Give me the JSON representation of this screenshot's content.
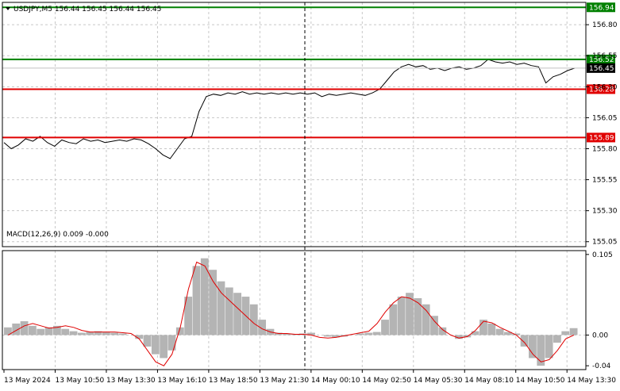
{
  "header": {
    "title": "USDJPY,M5  156.44 156.45 156.44 156.45"
  },
  "macd": {
    "label": "MACD(12,26,9) 0.009 -0.000"
  },
  "colors": {
    "background": "#ffffff",
    "grid": "#c8c8c8",
    "price_line": "#000000",
    "resistance": "#008000",
    "support": "#e00000",
    "histogram": "#b4b4b4",
    "signal": "#e00000",
    "current_price_label_bg": "#000000"
  },
  "chart_data": [
    {
      "type": "line",
      "title": "USDJPY,M5  156.44 156.45 156.44 156.45",
      "y_ticks": [
        "156.80",
        "156.55",
        "156.30",
        "156.05",
        "155.80",
        "155.55",
        "155.30",
        "155.05"
      ],
      "x_ticks": [
        "13 May 2024",
        "13 May 10:50",
        "13 May 13:30",
        "13 May 16:10",
        "13 May 18:50",
        "13 May 21:30",
        "14 May 00:10",
        "14 May 02:50",
        "14 May 05:30",
        "14 May 08:10",
        "14 May 10:50",
        "14 May 13:30"
      ],
      "ylim": [
        155.01,
        156.98
      ],
      "grid": true,
      "levels": [
        {
          "value": 156.94,
          "label": "156.94",
          "color": "#008000"
        },
        {
          "value": 156.52,
          "label": "156.52",
          "color": "#008000"
        },
        {
          "value": 156.28,
          "label": "156.28",
          "color": "#e00000"
        },
        {
          "value": 155.89,
          "label": "155.89",
          "color": "#e00000"
        }
      ],
      "current_price": {
        "value": 156.45,
        "label": "156.45"
      },
      "vertical_marker_x_index": 5.6,
      "series": [
        {
          "values": [
            155.85,
            155.8,
            155.83,
            155.88,
            155.86,
            155.9,
            155.85,
            155.82,
            155.87,
            155.85,
            155.84,
            155.88,
            155.86,
            155.87,
            155.85,
            155.86,
            155.87,
            155.86,
            155.88,
            155.87,
            155.84,
            155.8,
            155.75,
            155.72,
            155.8,
            155.88,
            155.9,
            156.1,
            156.22,
            156.24,
            156.23,
            156.25,
            156.24,
            156.26,
            156.24,
            156.25,
            156.24,
            156.25,
            156.24,
            156.25,
            156.24,
            156.25,
            156.24,
            156.25,
            156.22,
            156.24,
            156.23,
            156.24,
            156.25,
            156.24,
            156.23,
            156.25,
            156.28,
            156.35,
            156.42,
            156.46,
            156.48,
            156.46,
            156.47,
            156.44,
            156.45,
            156.43,
            156.45,
            156.46,
            156.44,
            156.45,
            156.47,
            156.52,
            156.5,
            156.49,
            156.5,
            156.48,
            156.49,
            156.47,
            156.46,
            156.33,
            156.38,
            156.4,
            156.43,
            156.45
          ]
        }
      ]
    },
    {
      "type": "bar",
      "title": "MACD(12,26,9) 0.009 -0.000",
      "y_ticks": [
        "0.105",
        "0.00",
        "-0.04"
      ],
      "ylim": [
        -0.045,
        0.11
      ],
      "histogram": [
        0.01,
        0.015,
        0.018,
        0.012,
        0.008,
        0.01,
        0.012,
        0.008,
        0.005,
        0.003,
        0.004,
        0.005,
        0.004,
        0.003,
        0.002,
        0.0,
        -0.005,
        -0.015,
        -0.025,
        -0.03,
        -0.02,
        0.01,
        0.05,
        0.09,
        0.1,
        0.085,
        0.07,
        0.062,
        0.055,
        0.05,
        0.04,
        0.02,
        0.008,
        0.003,
        0.002,
        0.001,
        0.002,
        0.003,
        0.0,
        -0.002,
        -0.003,
        -0.002,
        0.0,
        0.002,
        0.003,
        0.004,
        0.02,
        0.04,
        0.05,
        0.055,
        0.048,
        0.04,
        0.025,
        0.01,
        0.0,
        -0.005,
        -0.003,
        0.005,
        0.02,
        0.015,
        0.008,
        0.004,
        0.002,
        -0.015,
        -0.03,
        -0.04,
        -0.03,
        -0.01,
        0.005,
        0.009
      ],
      "signal": [
        0.0,
        0.006,
        0.012,
        0.015,
        0.012,
        0.009,
        0.01,
        0.012,
        0.01,
        0.006,
        0.004,
        0.004,
        0.004,
        0.004,
        0.003,
        0.002,
        -0.005,
        -0.02,
        -0.035,
        -0.04,
        -0.025,
        0.01,
        0.06,
        0.095,
        0.09,
        0.07,
        0.055,
        0.045,
        0.035,
        0.025,
        0.015,
        0.008,
        0.004,
        0.002,
        0.002,
        0.001,
        0.001,
        0.0,
        -0.003,
        -0.004,
        -0.003,
        -0.001,
        0.001,
        0.003,
        0.005,
        0.015,
        0.03,
        0.042,
        0.05,
        0.048,
        0.042,
        0.032,
        0.018,
        0.007,
        0.0,
        -0.004,
        -0.002,
        0.006,
        0.018,
        0.016,
        0.01,
        0.005,
        0.0,
        -0.01,
        -0.025,
        -0.035,
        -0.032,
        -0.02,
        -0.005,
        0.0
      ]
    }
  ]
}
